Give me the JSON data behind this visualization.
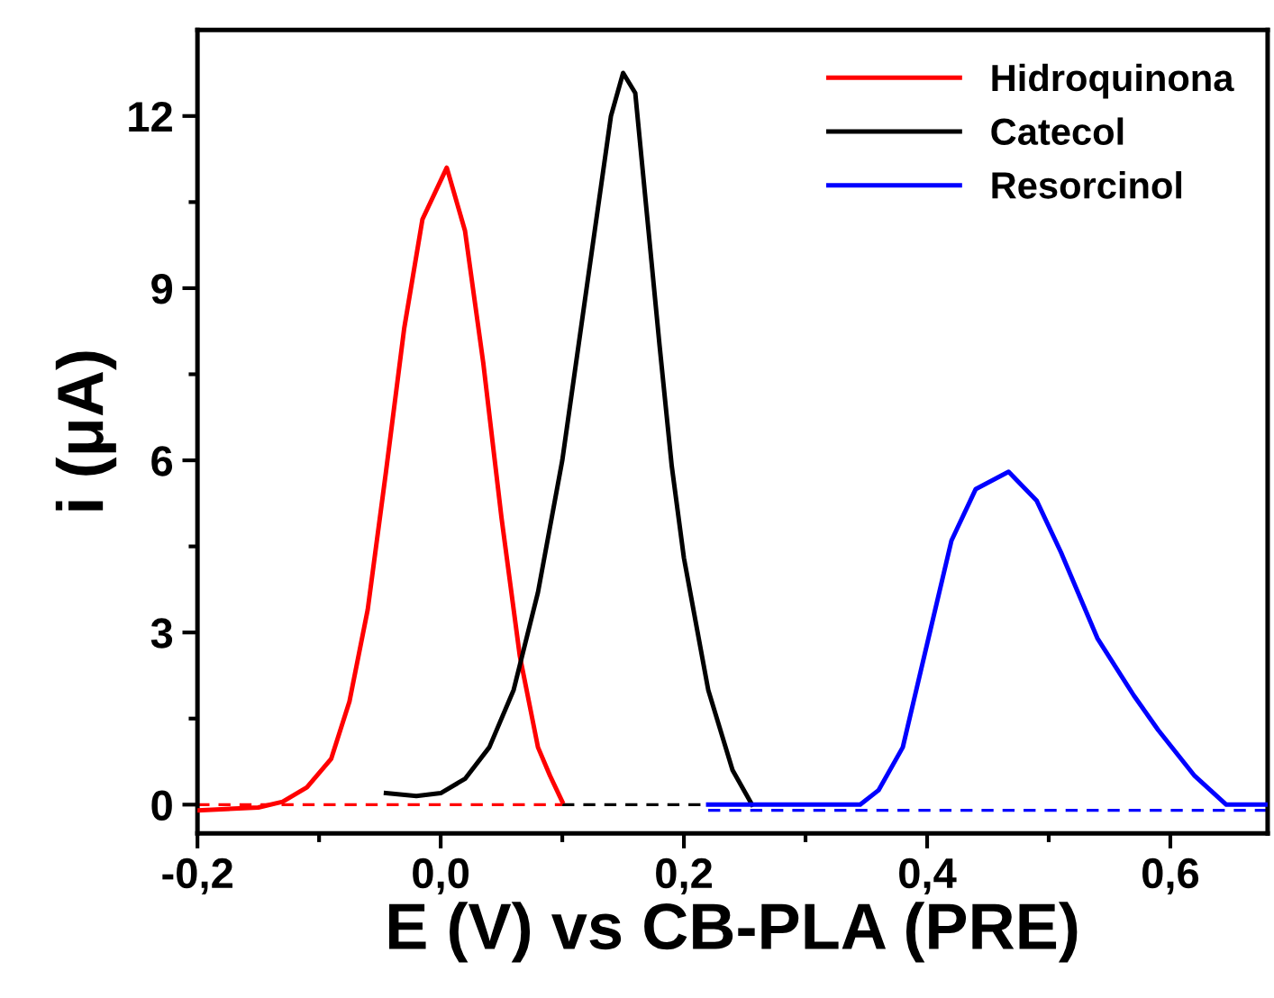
{
  "chart_data": {
    "type": "line",
    "xlabel": "E (V) vs CB-PLA (PRE)",
    "ylabel": "i (μA)",
    "xlim": [
      -0.2,
      0.68
    ],
    "ylim": [
      -0.5,
      13.5
    ],
    "xticks": [
      {
        "value": -0.2,
        "label": "-0,2"
      },
      {
        "value": -0.1,
        "label": null
      },
      {
        "value": 0.0,
        "label": "0,0"
      },
      {
        "value": 0.1,
        "label": null
      },
      {
        "value": 0.2,
        "label": "0,2"
      },
      {
        "value": 0.3,
        "label": null
      },
      {
        "value": 0.4,
        "label": "0,4"
      },
      {
        "value": 0.5,
        "label": null
      },
      {
        "value": 0.6,
        "label": "0,6"
      }
    ],
    "yticks": [
      0,
      {
        "value": 1.5,
        "label": null
      },
      3,
      {
        "value": 4.5,
        "label": null
      },
      6,
      {
        "value": 7.5,
        "label": null
      },
      9,
      {
        "value": 10.5,
        "label": null
      },
      12
    ],
    "grid": false,
    "legend": "top right",
    "line_style": "solid",
    "marker": "none",
    "series": [
      {
        "name": "Hidroquinona",
        "color": "#ff0000",
        "x": [
          -0.2,
          -0.15,
          -0.13,
          -0.11,
          -0.09,
          -0.075,
          -0.06,
          -0.045,
          -0.03,
          -0.015,
          0.005,
          0.02,
          0.035,
          0.05,
          0.065,
          0.08,
          0.09,
          0.1
        ],
        "values": [
          -0.1,
          -0.05,
          0.05,
          0.3,
          0.8,
          1.8,
          3.4,
          5.8,
          8.3,
          10.2,
          11.1,
          10.0,
          7.7,
          5.0,
          2.6,
          1.0,
          0.5,
          0.05
        ]
      },
      {
        "name": "Catecol",
        "color": "#000000",
        "x": [
          -0.045,
          -0.02,
          0.0,
          0.02,
          0.04,
          0.06,
          0.08,
          0.1,
          0.12,
          0.14,
          0.15,
          0.16,
          0.17,
          0.18,
          0.19,
          0.2,
          0.22,
          0.24,
          0.256
        ],
        "values": [
          0.2,
          0.15,
          0.2,
          0.45,
          1.0,
          2.0,
          3.7,
          6.0,
          9.0,
          12.0,
          12.75,
          12.4,
          10.2,
          8.0,
          5.9,
          4.3,
          2.0,
          0.6,
          0.0
        ]
      },
      {
        "name": "Resorcinol",
        "color": "#0000ff",
        "x": [
          0.22,
          0.3,
          0.345,
          0.36,
          0.38,
          0.4,
          0.42,
          0.44,
          0.467,
          0.49,
          0.51,
          0.54,
          0.57,
          0.59,
          0.62,
          0.646,
          0.68
        ],
        "values": [
          0.0,
          0.0,
          0.0,
          0.25,
          1.0,
          2.8,
          4.6,
          5.5,
          5.8,
          5.3,
          4.4,
          2.9,
          1.9,
          1.3,
          0.5,
          0.0,
          0.0
        ]
      },
      {
        "color": "#ff0000",
        "line_style": "dashed",
        "x": [
          -0.2,
          0.1
        ],
        "values": [
          0.0,
          0.0
        ]
      },
      {
        "color": "#000000",
        "line_style": "dashed",
        "x": [
          0.1,
          0.26
        ],
        "values": [
          0.0,
          0.0
        ]
      },
      {
        "color": "#0000ff",
        "line_style": "dashed",
        "x": [
          0.22,
          0.68
        ],
        "values": [
          -0.1,
          -0.1
        ]
      }
    ]
  }
}
